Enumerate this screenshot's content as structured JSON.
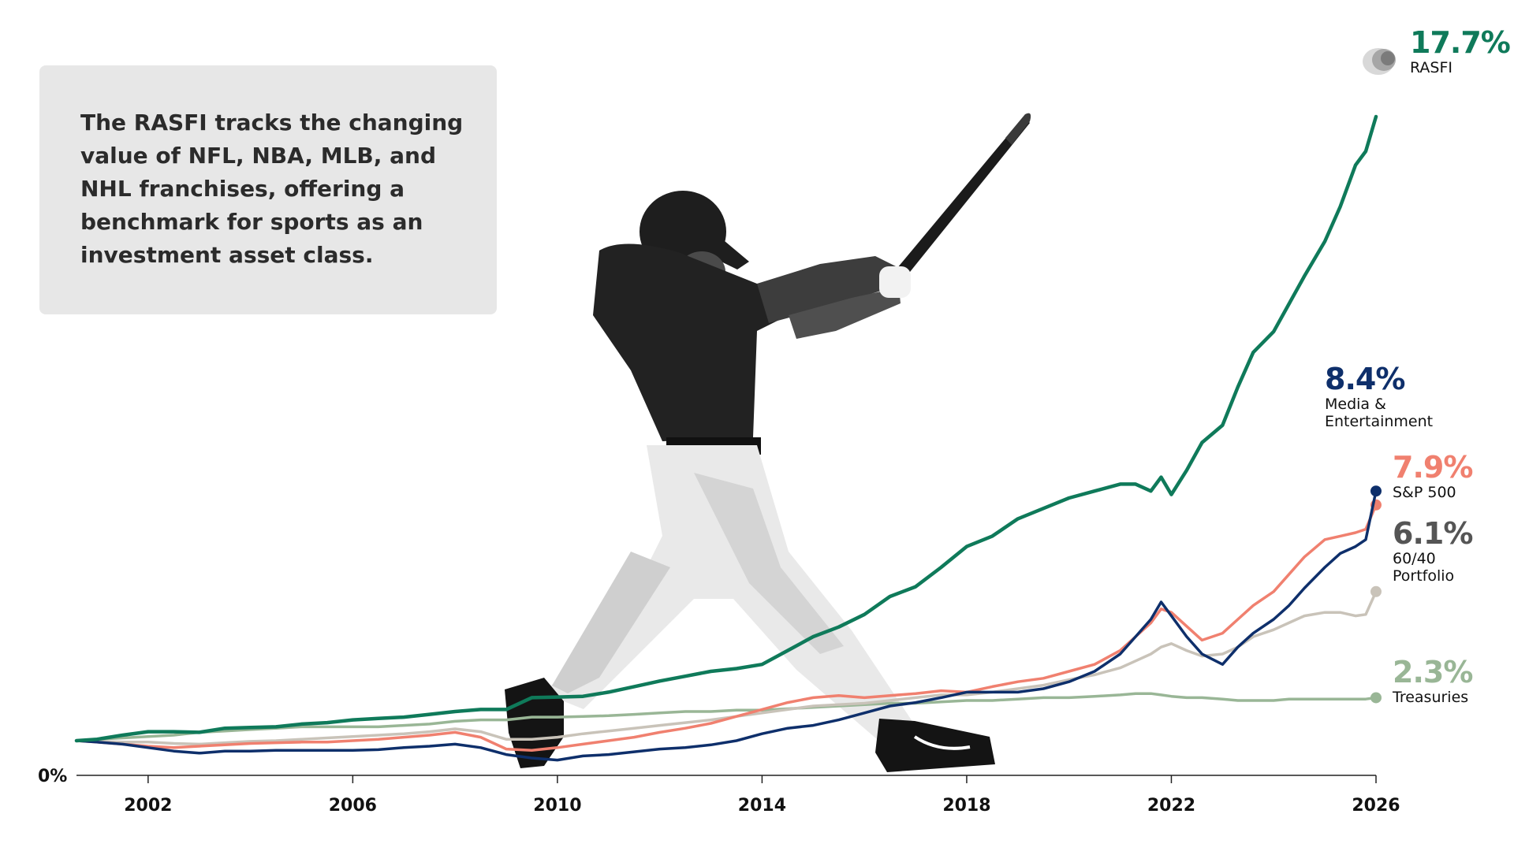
{
  "callout": {
    "text": "The RASFI tracks the changing value of NFL, NBA, MLB, and NHL franchises, offering a benchmark for sports as an investment asset class."
  },
  "chart_data": {
    "type": "line",
    "title": "",
    "xlabel": "",
    "ylabel": "",
    "xlim": [
      2000.6,
      2026
    ],
    "ylim": [
      0,
      1000
    ],
    "grid": false,
    "y_tick_label": "0%",
    "x_ticks": [
      "2002",
      "2006",
      "2010",
      "2014",
      "2018",
      "2022",
      "2026"
    ],
    "series": [
      {
        "key": "rasfi",
        "name": "RASFI",
        "end_label": "17.7%",
        "color": "#0f7a5a",
        "x": [
          2000.6,
          2001,
          2001.5,
          2002,
          2002.5,
          2003,
          2003.5,
          2004,
          2004.5,
          2005,
          2005.5,
          2006,
          2006.5,
          2007,
          2007.5,
          2008,
          2008.5,
          2009,
          2009.5,
          2010,
          2010.5,
          2011,
          2011.5,
          2012,
          2012.5,
          2013,
          2013.5,
          2014,
          2014.5,
          2015,
          2015.5,
          2016,
          2016.5,
          2017,
          2017.5,
          2018,
          2018.5,
          2019,
          2019.5,
          2020,
          2020.5,
          2021,
          2021.3,
          2021.6,
          2021.8,
          2022,
          2022.3,
          2022.6,
          2023,
          2023.3,
          2023.6,
          2024,
          2024.3,
          2024.6,
          2025,
          2025.3,
          2025.6,
          2025.8,
          2026
        ],
        "y": [
          50,
          52,
          58,
          63,
          63,
          62,
          68,
          69,
          70,
          74,
          76,
          80,
          82,
          84,
          88,
          92,
          95,
          95,
          112,
          113,
          114,
          120,
          128,
          136,
          143,
          150,
          154,
          160,
          180,
          200,
          214,
          232,
          258,
          272,
          300,
          330,
          345,
          370,
          385,
          400,
          410,
          420,
          420,
          410,
          430,
          405,
          440,
          480,
          505,
          560,
          610,
          640,
          680,
          720,
          770,
          820,
          880,
          900,
          950
        ]
      },
      {
        "key": "media",
        "name": "Media &\nEntertainment",
        "end_label": "8.4%",
        "color": "#0e2f6b",
        "x": [
          2000.6,
          2001,
          2001.5,
          2002,
          2002.5,
          2003,
          2003.5,
          2004,
          2004.5,
          2005,
          2005.5,
          2006,
          2006.5,
          2007,
          2007.5,
          2008,
          2008.5,
          2009,
          2009.5,
          2010,
          2010.5,
          2011,
          2011.5,
          2012,
          2012.5,
          2013,
          2013.5,
          2014,
          2014.5,
          2015,
          2015.5,
          2016,
          2016.5,
          2017,
          2017.5,
          2018,
          2018.5,
          2019,
          2019.5,
          2020,
          2020.5,
          2021,
          2021.3,
          2021.6,
          2021.8,
          2022,
          2022.3,
          2022.6,
          2023,
          2023.3,
          2023.6,
          2024,
          2024.3,
          2024.6,
          2025,
          2025.3,
          2025.6,
          2025.8,
          2026
        ],
        "y": [
          50,
          48,
          45,
          40,
          35,
          32,
          35,
          35,
          36,
          36,
          36,
          36,
          37,
          40,
          42,
          45,
          40,
          30,
          25,
          22,
          28,
          30,
          34,
          38,
          40,
          44,
          50,
          60,
          68,
          72,
          80,
          90,
          100,
          105,
          112,
          120,
          120,
          120,
          125,
          135,
          150,
          175,
          200,
          225,
          250,
          230,
          200,
          175,
          160,
          185,
          205,
          225,
          245,
          270,
          300,
          320,
          330,
          340,
          410
        ]
      },
      {
        "key": "sp500",
        "name": "S&P 500",
        "end_label": "7.9%",
        "color": "#f0806f",
        "x": [
          2000.6,
          2001,
          2001.5,
          2002,
          2002.5,
          2003,
          2003.5,
          2004,
          2004.5,
          2005,
          2005.5,
          2006,
          2006.5,
          2007,
          2007.5,
          2008,
          2008.5,
          2009,
          2009.5,
          2010,
          2010.5,
          2011,
          2011.5,
          2012,
          2012.5,
          2013,
          2013.5,
          2014,
          2014.5,
          2015,
          2015.5,
          2016,
          2016.5,
          2017,
          2017.5,
          2018,
          2018.5,
          2019,
          2019.5,
          2020,
          2020.5,
          2021,
          2021.3,
          2021.6,
          2021.8,
          2022,
          2022.3,
          2022.6,
          2023,
          2023.3,
          2023.6,
          2024,
          2024.3,
          2024.6,
          2025,
          2025.3,
          2025.6,
          2025.8,
          2026
        ],
        "y": [
          50,
          48,
          45,
          42,
          40,
          42,
          44,
          46,
          47,
          48,
          48,
          50,
          52,
          55,
          58,
          62,
          55,
          38,
          36,
          40,
          45,
          50,
          55,
          62,
          68,
          75,
          85,
          95,
          105,
          112,
          115,
          112,
          115,
          118,
          122,
          120,
          128,
          135,
          140,
          150,
          160,
          180,
          200,
          220,
          240,
          235,
          215,
          195,
          205,
          225,
          245,
          265,
          290,
          315,
          340,
          345,
          350,
          355,
          390
        ]
      },
      {
        "key": "sixty",
        "name": "60/40\nPortfolio",
        "end_label": "6.1%",
        "color": "#c9c3b9",
        "x": [
          2000.6,
          2001,
          2001.5,
          2002,
          2002.5,
          2003,
          2003.5,
          2004,
          2004.5,
          2005,
          2005.5,
          2006,
          2006.5,
          2007,
          2007.5,
          2008,
          2008.5,
          2009,
          2009.5,
          2010,
          2010.5,
          2011,
          2011.5,
          2012,
          2012.5,
          2013,
          2013.5,
          2014,
          2014.5,
          2015,
          2015.5,
          2016,
          2016.5,
          2017,
          2017.5,
          2018,
          2018.5,
          2019,
          2019.5,
          2020,
          2020.5,
          2021,
          2021.3,
          2021.6,
          2021.8,
          2022,
          2022.3,
          2022.6,
          2023,
          2023.3,
          2023.6,
          2024,
          2024.3,
          2024.6,
          2025,
          2025.3,
          2025.6,
          2025.8,
          2026
        ],
        "y": [
          50,
          49,
          48,
          48,
          46,
          45,
          47,
          49,
          50,
          52,
          54,
          56,
          58,
          60,
          63,
          67,
          63,
          52,
          52,
          55,
          60,
          64,
          68,
          72,
          76,
          80,
          85,
          90,
          95,
          100,
          102,
          104,
          108,
          112,
          116,
          116,
          120,
          125,
          130,
          138,
          145,
          155,
          165,
          175,
          185,
          190,
          180,
          172,
          175,
          185,
          200,
          210,
          220,
          230,
          235,
          235,
          230,
          232,
          265
        ]
      },
      {
        "key": "treas",
        "name": "Treasuries",
        "end_label": "2.3%",
        "color": "#99b696",
        "x": [
          2000.6,
          2001,
          2001.5,
          2002,
          2002.5,
          2003,
          2003.5,
          2004,
          2004.5,
          2005,
          2005.5,
          2006,
          2006.5,
          2007,
          2007.5,
          2008,
          2008.5,
          2009,
          2009.5,
          2010,
          2010.5,
          2011,
          2011.5,
          2012,
          2012.5,
          2013,
          2013.5,
          2014,
          2014.5,
          2015,
          2015.5,
          2016,
          2016.5,
          2017,
          2017.5,
          2018,
          2018.5,
          2019,
          2019.5,
          2020,
          2020.5,
          2021,
          2021.3,
          2021.6,
          2021.8,
          2022,
          2022.3,
          2022.6,
          2023,
          2023.3,
          2023.6,
          2024,
          2024.3,
          2024.6,
          2025,
          2025.3,
          2025.6,
          2025.8,
          2026
        ],
        "y": [
          50,
          52,
          54,
          56,
          58,
          62,
          64,
          66,
          68,
          70,
          70,
          70,
          70,
          72,
          74,
          78,
          80,
          80,
          84,
          84,
          85,
          86,
          88,
          90,
          92,
          92,
          94,
          94,
          96,
          98,
          100,
          102,
          104,
          104,
          106,
          108,
          108,
          110,
          112,
          112,
          114,
          116,
          118,
          118,
          116,
          114,
          112,
          112,
          110,
          108,
          108,
          108,
          110,
          110,
          110,
          110,
          110,
          110,
          112
        ]
      }
    ]
  }
}
